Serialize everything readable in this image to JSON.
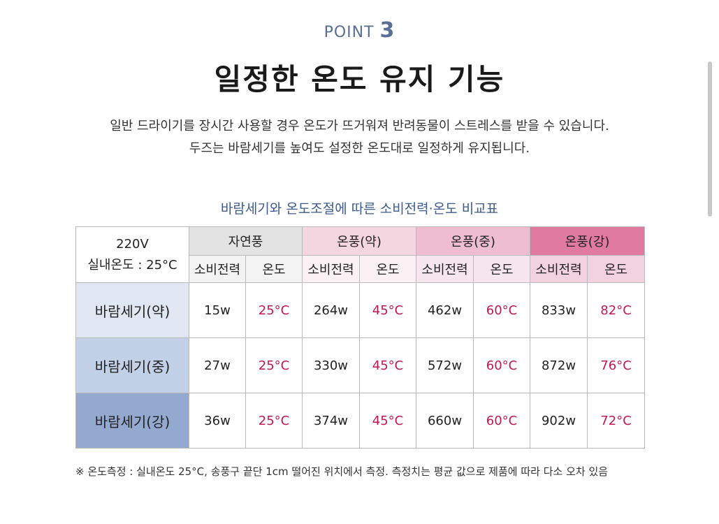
{
  "header": {
    "point_label": "POINT",
    "point_number": "3",
    "title": "일정한 온도 유지 기능",
    "description_line1": "일반 드라이기를 장시간 사용할 경우 온도가 뜨거워져 반려동물이 스트레스를 받을 수 있습니다.",
    "description_line2": "두즈는 바람세기를 높여도 설정한 온도대로 일정하게 유지됩니다."
  },
  "table": {
    "caption": "바람세기와 온도조절에 따른 소비전력·온도 비교표",
    "corner_line1": "220V",
    "corner_line2": "실내온도 : 25°C",
    "groups": [
      "자연풍",
      "온풍(약)",
      "온풍(중)",
      "온풍(강)"
    ],
    "sub_headers": [
      "소비전력",
      "온도",
      "소비전력",
      "온도",
      "소비전력",
      "온도",
      "소비전력",
      "온도"
    ],
    "rows": [
      {
        "label": "바람세기(약)",
        "cells": [
          "15w",
          "25°C",
          "264w",
          "45°C",
          "462w",
          "60°C",
          "833w",
          "82°C"
        ]
      },
      {
        "label": "바람세기(중)",
        "cells": [
          "27w",
          "25°C",
          "330w",
          "45°C",
          "572w",
          "60°C",
          "872w",
          "76°C"
        ]
      },
      {
        "label": "바람세기(강)",
        "cells": [
          "36w",
          "25°C",
          "374w",
          "45°C",
          "660w",
          "60°C",
          "902w",
          "72°C"
        ]
      }
    ]
  },
  "footnote": "※ 온도측정 : 실내온도 25°C, 송풍구 끝단 1cm 떨어진 위치에서 측정. 측정치는 평균 값으로 제품에 따라 다소 오차 있음",
  "colors": {
    "accent_blue": "#3d5b8c",
    "temperature_red": "#c2184f",
    "group_pink_strong": "#e17a9f"
  }
}
